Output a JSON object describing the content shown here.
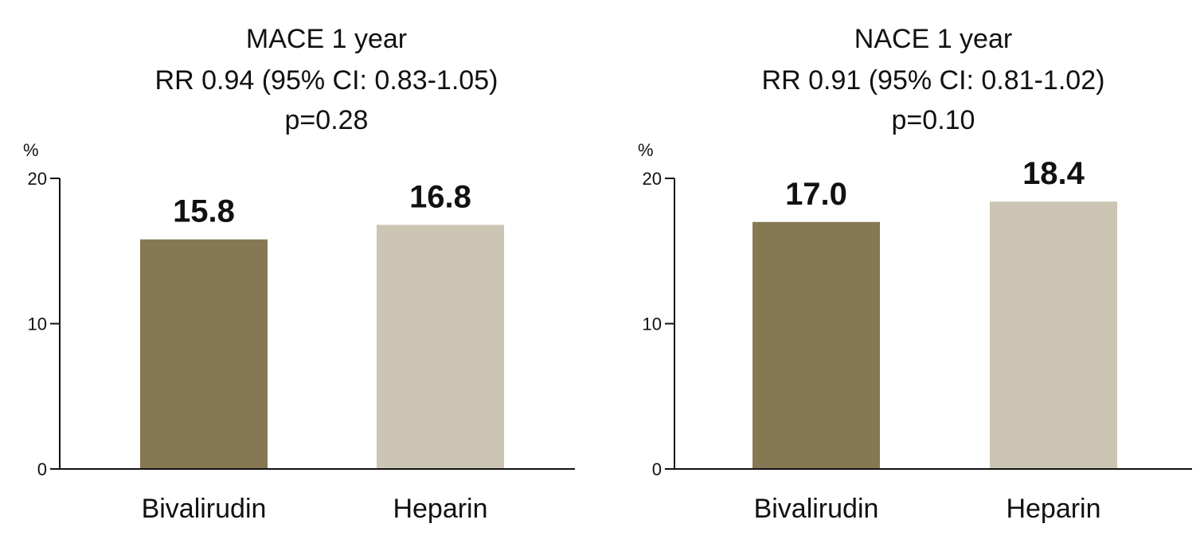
{
  "chart_data": [
    {
      "type": "bar",
      "title_lines": [
        "MACE 1 year",
        "RR 0.94 (95% CI: 0.83-1.05)",
        "p=0.28"
      ],
      "ylabel": "%",
      "ylim": [
        0,
        20
      ],
      "yticks": [
        0,
        10,
        20
      ],
      "categories": [
        "Bivalirudin",
        "Heparin"
      ],
      "values": [
        15.8,
        16.8
      ],
      "value_labels": [
        "15.8",
        "16.8"
      ],
      "colors": [
        "#857853",
        "#cdc5b3"
      ],
      "grid": false
    },
    {
      "type": "bar",
      "title_lines": [
        "NACE 1 year",
        "RR 0.91 (95% CI: 0.81-1.02)",
        "p=0.10"
      ],
      "ylabel": "%",
      "ylim": [
        0,
        20
      ],
      "yticks": [
        0,
        10,
        20
      ],
      "categories": [
        "Bivalirudin",
        "Heparin"
      ],
      "values": [
        17.0,
        18.4
      ],
      "value_labels": [
        "17.0",
        "18.4"
      ],
      "colors": [
        "#857853",
        "#cdc5b3"
      ],
      "grid": false
    }
  ]
}
